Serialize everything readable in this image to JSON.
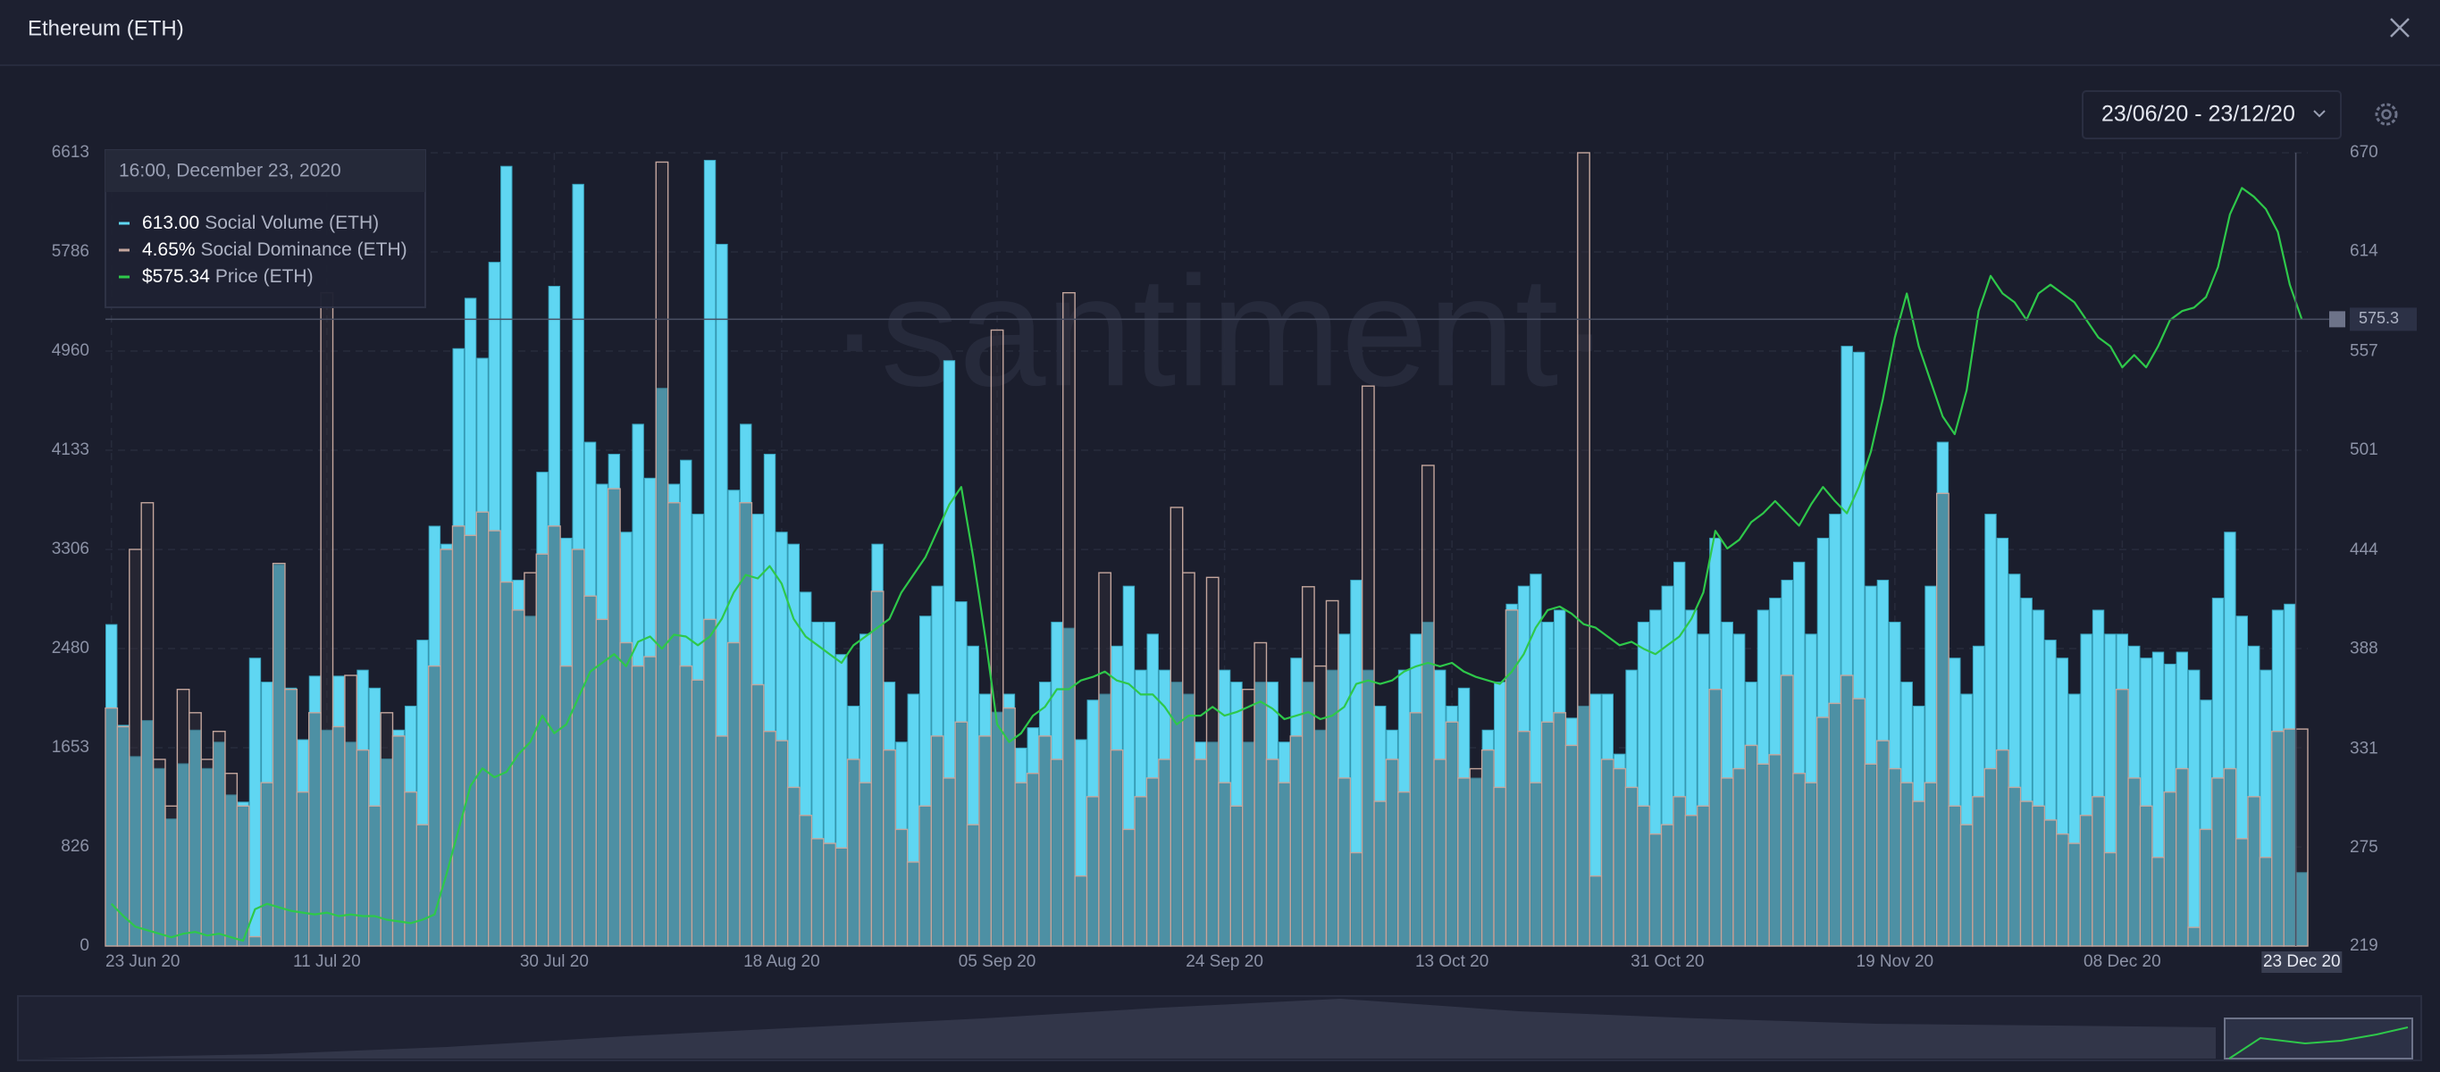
{
  "header": {
    "title": "Ethereum (ETH)",
    "date_range": "23/06/20 - 23/12/20"
  },
  "watermark": "·santiment·",
  "chart_data": {
    "type": "bar",
    "categories": [
      "23 Jun 20",
      null,
      null,
      null,
      null,
      null,
      null,
      null,
      null,
      null,
      null,
      null,
      null,
      null,
      null,
      null,
      null,
      null,
      "11 Jul 20",
      null,
      null,
      null,
      null,
      null,
      null,
      null,
      null,
      null,
      null,
      null,
      null,
      null,
      null,
      null,
      null,
      null,
      null,
      "30 Jul 20",
      null,
      null,
      null,
      null,
      null,
      null,
      null,
      null,
      null,
      null,
      null,
      null,
      null,
      null,
      null,
      null,
      null,
      null,
      "18 Aug 20",
      null,
      null,
      null,
      null,
      null,
      null,
      null,
      null,
      null,
      null,
      null,
      null,
      null,
      null,
      null,
      null,
      null,
      "05 Sep 20",
      null,
      null,
      null,
      null,
      null,
      null,
      null,
      null,
      null,
      null,
      null,
      null,
      null,
      null,
      null,
      null,
      null,
      null,
      "24 Sep 20",
      null,
      null,
      null,
      null,
      null,
      null,
      null,
      null,
      null,
      null,
      null,
      null,
      null,
      null,
      null,
      null,
      null,
      null,
      "13 Oct 20",
      null,
      null,
      null,
      null,
      null,
      null,
      null,
      null,
      null,
      null,
      null,
      null,
      null,
      null,
      null,
      null,
      null,
      "31 Oct 20",
      null,
      null,
      null,
      null,
      null,
      null,
      null,
      null,
      null,
      null,
      null,
      null,
      null,
      null,
      null,
      null,
      null,
      null,
      "19 Nov 20",
      null,
      null,
      null,
      null,
      null,
      null,
      null,
      null,
      null,
      null,
      null,
      null,
      null,
      null,
      null,
      null,
      null,
      null,
      "08 Dec 20",
      null,
      null,
      null,
      null,
      null,
      null,
      null,
      null,
      null,
      null,
      null,
      null,
      null,
      null,
      "23 Dec 20"
    ],
    "series": [
      {
        "name": "Social Volume (ETH)",
        "color": "#5fd6f2",
        "values": [
          2680,
          1840,
          1580,
          1880,
          1480,
          1060,
          1520,
          1800,
          1480,
          1700,
          1260,
          1200,
          2400,
          2200,
          3180,
          2150,
          1720,
          2250,
          1800,
          2250,
          1700,
          2300,
          2150,
          1560,
          1800,
          2000,
          2550,
          3500,
          3350,
          4980,
          5400,
          4900,
          5700,
          6500,
          3050,
          2750,
          3950,
          5500,
          3400,
          6350,
          4200,
          3850,
          4100,
          3450,
          4350,
          3900,
          4650,
          3850,
          4050,
          3600,
          6550,
          5850,
          3800,
          4350,
          3600,
          4100,
          3450,
          3350,
          2950,
          2700,
          2700,
          2430,
          2000,
          2600,
          3350,
          2200,
          1700,
          2100,
          2750,
          3000,
          4880,
          2870,
          2500,
          2100,
          1950,
          2100,
          1650,
          1820,
          2200,
          2700,
          2650,
          1720,
          2050,
          2100,
          2500,
          3000,
          2300,
          2600,
          2300,
          2200,
          2100,
          1700,
          1700,
          2300,
          2200,
          1700,
          2200,
          2200,
          1700,
          2400,
          2200,
          1800,
          2300,
          2600,
          3050,
          2300,
          2000,
          1800,
          2300,
          2600,
          2700,
          2300,
          2000,
          2150,
          1400,
          1800,
          2200,
          2850,
          3000,
          3100,
          2700,
          2800,
          1900,
          2000,
          2100,
          2100,
          1600,
          2300,
          2700,
          2800,
          3000,
          3200,
          2800,
          2600,
          3400,
          2700,
          2600,
          2200,
          2800,
          2900,
          3050,
          3200,
          2600,
          3400,
          3600,
          5000,
          4950,
          3000,
          3050,
          2700,
          2200,
          2000,
          3000,
          4200,
          2400,
          2100,
          2500,
          3600,
          3400,
          3100,
          2900,
          2800,
          2550,
          2400,
          2100,
          2600,
          2800,
          2600,
          2600,
          2500,
          2400,
          2450,
          2350,
          2450,
          2300,
          2050,
          2900,
          3450,
          2750,
          2500,
          2300,
          2800,
          2850,
          613
        ]
      },
      {
        "name": "Social Dominance (ETH)",
        "color": "#c4a69d",
        "axis": "y3",
        "values": [
          5.1,
          4.7,
          8.5,
          9.5,
          4.0,
          3.0,
          5.5,
          5.0,
          4.0,
          4.6,
          3.7,
          3.0,
          0.2,
          3.5,
          8.2,
          5.5,
          3.3,
          5.0,
          14.0,
          4.7,
          5.8,
          4.2,
          3.0,
          5.0,
          4.5,
          3.3,
          2.6,
          6.0,
          8.5,
          9.0,
          8.8,
          9.3,
          8.9,
          7.8,
          7.2,
          8.0,
          8.4,
          9.0,
          6.0,
          8.5,
          7.5,
          7.0,
          9.8,
          6.5,
          6.0,
          6.2,
          16.8,
          9.5,
          6.0,
          5.7,
          7.0,
          4.5,
          6.5,
          9.5,
          5.6,
          4.6,
          4.4,
          3.4,
          2.8,
          2.3,
          2.2,
          2.1,
          4.0,
          3.5,
          7.6,
          4.2,
          2.5,
          1.8,
          3.0,
          4.5,
          3.6,
          4.8,
          2.6,
          4.5,
          13.2,
          5.1,
          3.5,
          3.7,
          4.5,
          4.0,
          14.0,
          1.5,
          3.2,
          8.0,
          4.2,
          2.5,
          3.2,
          3.6,
          4.0,
          9.4,
          8.0,
          4.0,
          7.9,
          3.5,
          3.0,
          5.5,
          6.5,
          4.0,
          3.5,
          4.5,
          7.7,
          6.0,
          7.4,
          3.6,
          2.0,
          12.0,
          3.1,
          4.0,
          3.3,
          5.0,
          10.3,
          4.0,
          4.8,
          3.6,
          3.8,
          4.2,
          3.4,
          7.2,
          4.6,
          3.5,
          4.8,
          5.0,
          4.3,
          17.0,
          1.5,
          4.0,
          3.8,
          3.4,
          3.0,
          2.4,
          2.6,
          3.2,
          2.8,
          3.0,
          5.5,
          3.6,
          3.8,
          4.3,
          3.9,
          4.1,
          5.8,
          3.7,
          3.5,
          4.9,
          5.2,
          5.8,
          5.3,
          3.9,
          4.4,
          3.8,
          3.5,
          3.1,
          3.5,
          9.7,
          3.0,
          2.6,
          3.2,
          3.8,
          4.2,
          3.4,
          3.1,
          3.0,
          2.7,
          2.4,
          2.2,
          2.8,
          3.2,
          2.0,
          5.5,
          3.6,
          3.0,
          1.9,
          3.3,
          3.8,
          0.4,
          2.5,
          3.6,
          3.8,
          2.3,
          3.2,
          1.9,
          4.6,
          4.65,
          4.65
        ]
      },
      {
        "name": "Price (ETH)",
        "color": "#2ec84a",
        "axis": "y2",
        "values": [
          243,
          236,
          230,
          228,
          226,
          224,
          226,
          227,
          225,
          226,
          224,
          222,
          240,
          243,
          241,
          239,
          238,
          237,
          238,
          236,
          237,
          236,
          236,
          234,
          233,
          232,
          234,
          237,
          260,
          285,
          310,
          320,
          315,
          318,
          328,
          335,
          350,
          340,
          345,
          360,
          375,
          380,
          385,
          378,
          392,
          395,
          388,
          396,
          395,
          390,
          395,
          405,
          420,
          430,
          428,
          435,
          425,
          405,
          395,
          390,
          385,
          380,
          390,
          395,
          400,
          405,
          420,
          430,
          440,
          455,
          470,
          480,
          440,
          395,
          345,
          335,
          340,
          350,
          355,
          365,
          365,
          370,
          372,
          375,
          370,
          368,
          362,
          362,
          355,
          345,
          350,
          350,
          355,
          350,
          352,
          355,
          358,
          354,
          348,
          350,
          352,
          348,
          350,
          355,
          368,
          370,
          368,
          370,
          375,
          378,
          380,
          378,
          380,
          375,
          372,
          370,
          368,
          375,
          385,
          400,
          410,
          412,
          408,
          402,
          400,
          395,
          390,
          392,
          388,
          385,
          390,
          395,
          405,
          420,
          455,
          445,
          450,
          460,
          465,
          472,
          465,
          458,
          470,
          480,
          472,
          465,
          480,
          500,
          530,
          565,
          590,
          560,
          540,
          520,
          510,
          535,
          580,
          600,
          590,
          585,
          575,
          590,
          595,
          590,
          585,
          575,
          565,
          560,
          548,
          555,
          548,
          560,
          575,
          580,
          582,
          588,
          605,
          635,
          650,
          645,
          638,
          625,
          595,
          575.34
        ]
      }
    ],
    "ylim": [
      0,
      6613
    ],
    "yticks": [
      0,
      826,
      1653,
      2480,
      3306,
      4133,
      4960,
      5786,
      6613
    ],
    "y2lim": [
      219,
      670
    ],
    "y2ticks": [
      219,
      275,
      331,
      388,
      444,
      501,
      557,
      614,
      670
    ],
    "y3lim": [
      0,
      17
    ],
    "grid": true,
    "crosshair": {
      "value": 575.34,
      "label": "575.3"
    },
    "tooltip": {
      "title": "16:00, December 23, 2020",
      "values": [
        "613.00",
        "4.65%",
        "$575.34"
      ]
    }
  }
}
